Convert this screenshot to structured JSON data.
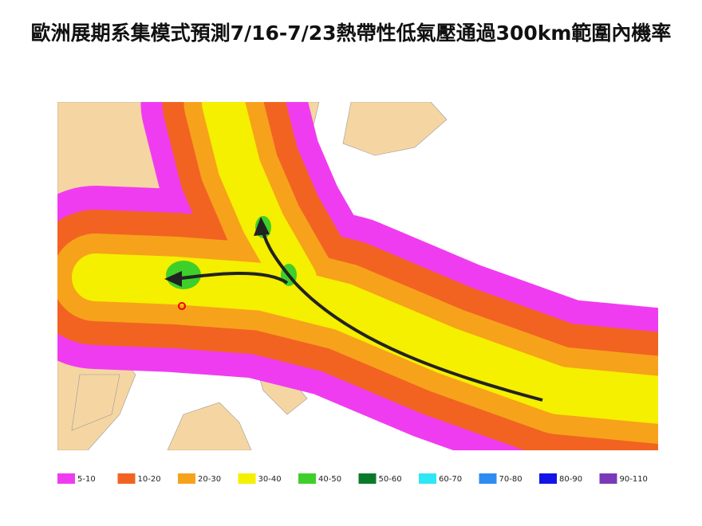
{
  "title": "歐洲展期系集模式預測7/16-7/23熱帶性低氣壓通過300km範圍內機率",
  "legend": [
    {
      "label": "5-10",
      "color": "#f03cf0"
    },
    {
      "label": "10-20",
      "color": "#f26322"
    },
    {
      "label": "20-30",
      "color": "#f7a21b"
    },
    {
      "label": "30-40",
      "color": "#f5ef00"
    },
    {
      "label": "40-50",
      "color": "#3fcf2a"
    },
    {
      "label": "50-60",
      "color": "#0a7a2a"
    },
    {
      "label": "60-70",
      "color": "#2fe6f5"
    },
    {
      "label": "70-80",
      "color": "#2f8cf0"
    },
    {
      "label": "80-90",
      "color": "#1414e6"
    },
    {
      "label": "90-110",
      "color": "#7a3ab8"
    }
  ]
}
